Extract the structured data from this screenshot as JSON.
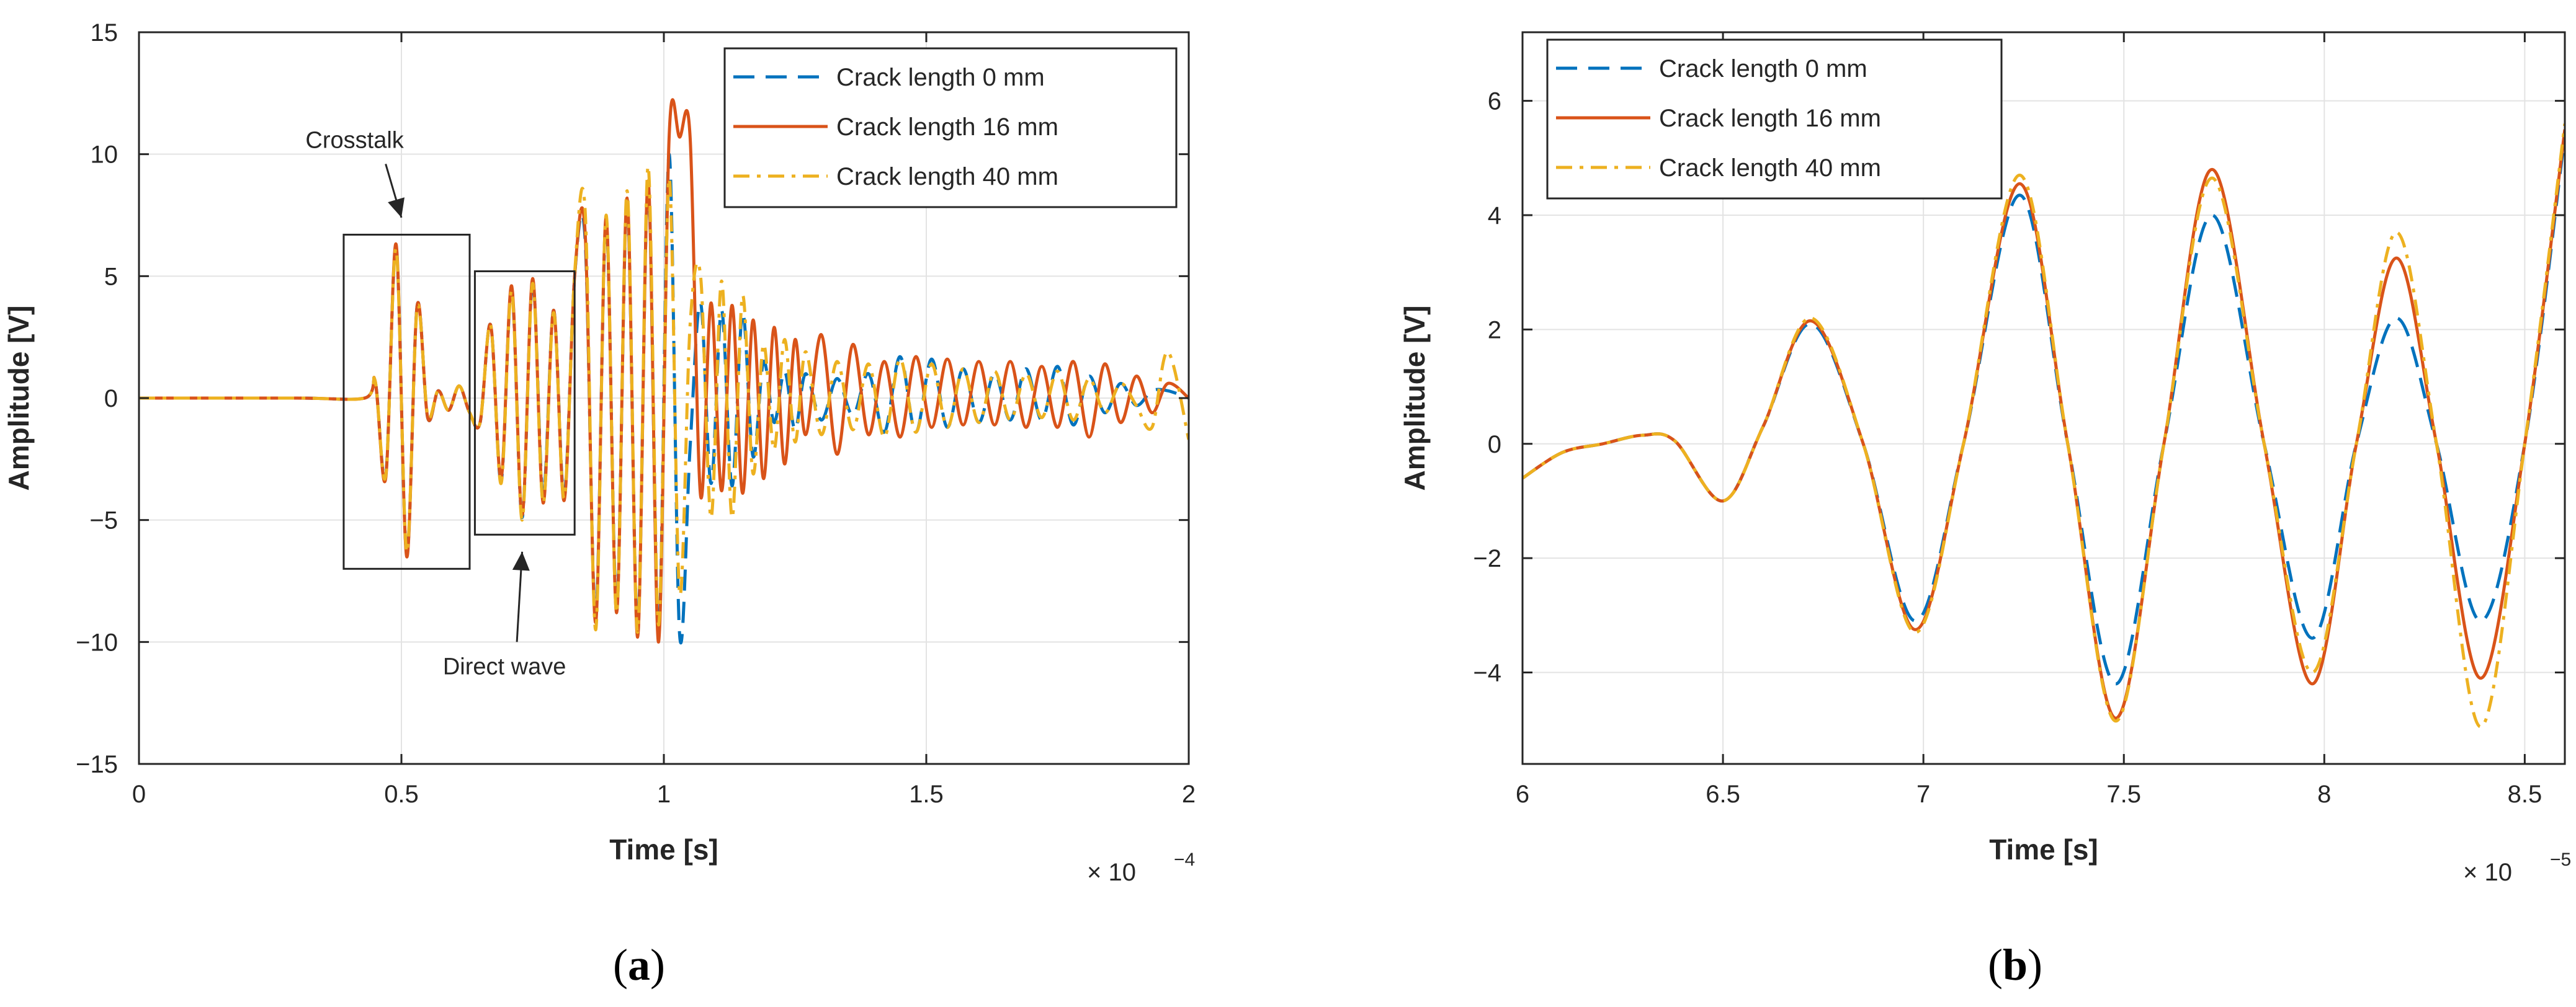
{
  "chart_data": [
    {
      "type": "line",
      "panel_label": "a",
      "caption": "(a)",
      "xlabel": "Time [s]",
      "ylabel": "Amplitude [V]",
      "xlim": [
        0,
        2
      ],
      "ylim": [
        -15,
        15
      ],
      "x_exponent_label": "× 10",
      "x_exponent": "−4",
      "xticks": [
        0,
        0.5,
        1,
        1.5,
        2
      ],
      "xtick_labels": [
        "0",
        "0.5",
        "1",
        "1.5",
        "2"
      ],
      "yticks": [
        -15,
        -10,
        -5,
        0,
        5,
        10,
        15
      ],
      "ytick_labels": [
        "−15",
        "−10",
        "−5",
        "0",
        "5",
        "10",
        "15"
      ],
      "grid": true,
      "legend_position": "top-right",
      "series": [
        {
          "name": "Crack length 0 mm",
          "color": "#0072BD",
          "style": "dashed"
        },
        {
          "name": "Crack length 16 mm",
          "color": "#D95319",
          "style": "solid"
        },
        {
          "name": "Crack length 40 mm",
          "color": "#EDB120",
          "style": "dashdot"
        }
      ],
      "annotations": [
        {
          "text": "Crosstalk",
          "box": {
            "x": [
              0.39,
              0.63
            ],
            "y": [
              -7.0,
              6.7
            ]
          },
          "arrow_from": [
            0.47,
            9.6
          ],
          "arrow_to": [
            0.5,
            7.4
          ]
        },
        {
          "text": "Direct  wave",
          "box": {
            "x": [
              0.64,
              0.83
            ],
            "y": [
              -5.6,
              5.2
            ]
          },
          "arrow_from": [
            0.72,
            -10.0
          ],
          "arrow_to": [
            0.73,
            -6.3
          ]
        }
      ],
      "samples": {
        "x": [
          0,
          0.3,
          0.43,
          0.45,
          0.47,
          0.49,
          0.51,
          0.53,
          0.55,
          0.57,
          0.59,
          0.61,
          0.63,
          0.65,
          0.67,
          0.69,
          0.71,
          0.73,
          0.75,
          0.77,
          0.79,
          0.81,
          0.83,
          0.85,
          0.87,
          0.89,
          0.91,
          0.93,
          0.95,
          0.97,
          0.99,
          1.01,
          1.03,
          1.05,
          1.07,
          1.09,
          1.11,
          1.13,
          1.15,
          1.17,
          1.19,
          1.21,
          1.23,
          1.25,
          1.27,
          1.3,
          1.33,
          1.36,
          1.39,
          1.42,
          1.45,
          1.48,
          1.51,
          1.54,
          1.57,
          1.6,
          1.63,
          1.66,
          1.69,
          1.72,
          1.75,
          1.78,
          1.81,
          1.84,
          1.87,
          1.9,
          1.93,
          1.96,
          2.0
        ],
        "series_values": [
          [
            0,
            0,
            0,
            0.7,
            -3.2,
            6.2,
            -6.4,
            3.8,
            -0.8,
            0.3,
            -0.5,
            0.5,
            -0.6,
            -1.0,
            3.0,
            -3.4,
            4.5,
            -4.9,
            4.8,
            -4.0,
            3.6,
            -4.0,
            5.0,
            6.5,
            -9.0,
            7.2,
            -8.5,
            8.0,
            -9.5,
            8.8,
            -9.8,
            10.0,
            -9.7,
            -2.0,
            3.9,
            -3.5,
            3.6,
            -3.6,
            3.5,
            -2.4,
            1.5,
            -1.0,
            1.1,
            -1.3,
            1.0,
            -0.9,
            0.8,
            -0.7,
            1.0,
            -1.4,
            1.7,
            -1.4,
            1.6,
            -1.2,
            1.2,
            -1.0,
            1.0,
            -0.9,
            1.2,
            -0.9,
            1.3,
            -1.1,
            0.9,
            -0.6,
            0.6,
            -0.3,
            0.3,
            0.3,
            0
          ],
          [
            0,
            0,
            0,
            0.7,
            -3.3,
            6.3,
            -6.5,
            3.8,
            -0.8,
            0.3,
            -0.5,
            0.5,
            -0.6,
            -1.0,
            3.0,
            -3.3,
            4.6,
            -4.8,
            4.9,
            -4.3,
            3.6,
            -4.2,
            5.0,
            6.8,
            -9.2,
            7.4,
            -8.8,
            8.2,
            -9.8,
            8.9,
            -10.0,
            10.7,
            10.7,
            10.7,
            -4.0,
            3.9,
            -3.8,
            3.8,
            -3.9,
            3.2,
            -3.3,
            2.9,
            -2.7,
            2.4,
            -1.5,
            2.6,
            -2.3,
            2.2,
            -1.5,
            1.5,
            -1.6,
            1.7,
            -1.2,
            1.6,
            -1.1,
            1.5,
            -1.1,
            1.5,
            -1.2,
            1.3,
            -1.2,
            1.5,
            -1.6,
            1.4,
            -1.0,
            0.9,
            -0.6,
            0.6,
            0
          ],
          [
            0,
            0,
            0,
            0.7,
            -3.2,
            6.1,
            -6.3,
            3.7,
            -0.7,
            0.3,
            -0.5,
            0.5,
            -0.6,
            -1.0,
            3.0,
            -3.5,
            4.4,
            -5.0,
            4.7,
            -4.3,
            3.5,
            -4.1,
            5.1,
            7.7,
            -9.5,
            7.5,
            -8.8,
            8.5,
            -9.6,
            9.5,
            -9.3,
            9.0,
            -8.0,
            3.0,
            5.0,
            -4.9,
            4.8,
            -4.9,
            4.2,
            -3.1,
            2.2,
            -2.1,
            2.4,
            -1.8,
            1.9,
            -1.5,
            1.5,
            -1.3,
            1.4,
            -1.6,
            1.6,
            -1.4,
            1.4,
            -1.2,
            1.2,
            -1.0,
            1.1,
            -0.9,
            1.0,
            -0.8,
            1.1,
            -0.9,
            0.8,
            -0.6,
            0.6,
            -0.3,
            -1.2,
            1.9,
            -1.7
          ]
        ]
      }
    },
    {
      "type": "line",
      "panel_label": "b",
      "caption": "(b)",
      "xlabel": "Time [s]",
      "ylabel": "Amplitude [V]",
      "xlim": [
        6,
        8.6
      ],
      "ylim": [
        -5.6,
        7.2
      ],
      "x_exponent_label": "× 10",
      "x_exponent": "−5",
      "xticks": [
        6,
        6.5,
        7,
        7.5,
        8,
        8.5
      ],
      "xtick_labels": [
        "6",
        "6.5",
        "7",
        "7.5",
        "8",
        "8.5"
      ],
      "yticks": [
        -4,
        -2,
        0,
        2,
        4,
        6
      ],
      "ytick_labels": [
        "−4",
        "−2",
        "0",
        "2",
        "4",
        "6"
      ],
      "grid": true,
      "legend_position": "top-left",
      "series": [
        {
          "name": "Crack length 0 mm",
          "color": "#0072BD",
          "style": "dashed"
        },
        {
          "name": "Crack length 16 mm",
          "color": "#D95319",
          "style": "solid"
        },
        {
          "name": "Crack length 40 mm",
          "color": "#EDB120",
          "style": "dashdot"
        }
      ],
      "samples": {
        "x": [
          6.0,
          6.1,
          6.2,
          6.3,
          6.38,
          6.5,
          6.6,
          6.72,
          6.85,
          6.98,
          7.1,
          7.24,
          7.36,
          7.48,
          7.6,
          7.72,
          7.85,
          7.97,
          8.08,
          8.18,
          8.28,
          8.39,
          8.5,
          8.6
        ],
        "series_values": [
          [
            -0.6,
            -0.15,
            0.0,
            0.15,
            0.05,
            -1.0,
            0.3,
            2.1,
            0.0,
            -3.1,
            0.0,
            4.35,
            0.0,
            -4.2,
            0.0,
            4.0,
            0.0,
            -3.4,
            0.0,
            2.2,
            0.0,
            -3.1,
            0.0,
            5.4
          ],
          [
            -0.6,
            -0.15,
            0.0,
            0.15,
            0.05,
            -1.0,
            0.3,
            2.15,
            0.0,
            -3.25,
            0.0,
            4.55,
            0.0,
            -4.8,
            0.0,
            4.8,
            0.0,
            -4.2,
            0.0,
            3.25,
            0.0,
            -4.1,
            0.0,
            5.5
          ],
          [
            -0.6,
            -0.15,
            0.0,
            0.15,
            0.05,
            -1.0,
            0.3,
            2.2,
            0.0,
            -3.3,
            0.0,
            4.7,
            0.0,
            -4.85,
            0.0,
            4.65,
            0.0,
            -4.0,
            0.0,
            3.7,
            0.0,
            -4.95,
            0.0,
            5.6
          ]
        ]
      }
    }
  ]
}
